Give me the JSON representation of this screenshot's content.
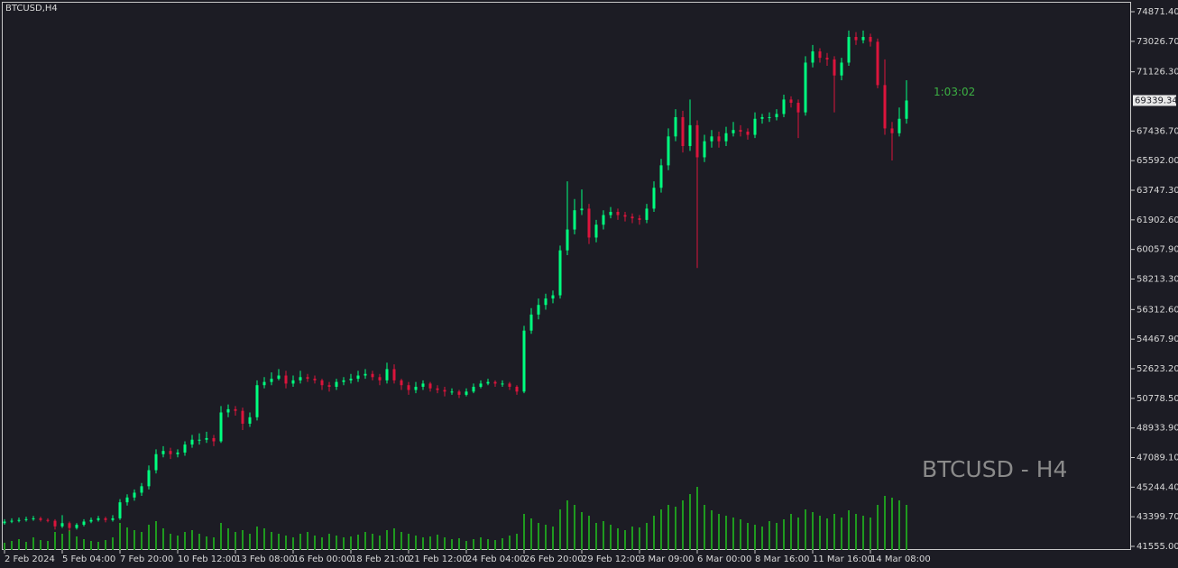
{
  "chart_data": {
    "type": "candlestick",
    "title": "BTCUSD,H4",
    "watermark": "BTCUSD - H4",
    "countdown": "1:03:02",
    "current_price": 69339.34,
    "up_color": "#00ff7f",
    "down_color": "#dc143c",
    "volume_color": "#1f9a1f",
    "ylim": [
      41330,
      75490
    ],
    "yticks": [
      {
        "value": 74871.4,
        "label": "74871.40"
      },
      {
        "value": 73026.7,
        "label": "73026.70"
      },
      {
        "value": 71126.3,
        "label": "71126.30"
      },
      {
        "value": 67436.7,
        "label": "67436.70"
      },
      {
        "value": 65592,
        "label": "65592.00"
      },
      {
        "value": 63747.3,
        "label": "63747.30"
      },
      {
        "value": 61902.6,
        "label": "61902.60"
      },
      {
        "value": 60057.9,
        "label": "60057.90"
      },
      {
        "value": 58213.3,
        "label": "58213.30"
      },
      {
        "value": 56312.6,
        "label": "56312.60"
      },
      {
        "value": 54467.9,
        "label": "54467.90"
      },
      {
        "value": 52623.2,
        "label": "52623.20"
      },
      {
        "value": 50778.5,
        "label": "50778.50"
      },
      {
        "value": 48933.9,
        "label": "48933.90"
      },
      {
        "value": 47089.1,
        "label": "47089.10"
      },
      {
        "value": 45244.4,
        "label": "45244.40"
      },
      {
        "value": 43399.7,
        "label": "43399.70"
      },
      {
        "value": 41555,
        "label": "41555.00"
      }
    ],
    "categories": [
      "2 Feb 2024",
      null,
      null,
      null,
      null,
      null,
      null,
      null,
      "5 Feb 04:00",
      null,
      null,
      null,
      null,
      null,
      null,
      null,
      "7 Feb 20:00",
      null,
      null,
      null,
      null,
      null,
      null,
      null,
      "10 Feb 12:00",
      null,
      null,
      null,
      null,
      null,
      null,
      null,
      "13 Feb 08:00",
      null,
      null,
      null,
      null,
      null,
      null,
      null,
      "16 Feb 00:00",
      null,
      null,
      null,
      null,
      null,
      null,
      null,
      "18 Feb 21:00",
      null,
      null,
      null,
      null,
      null,
      null,
      null,
      "21 Feb 12:00",
      null,
      null,
      null,
      null,
      null,
      null,
      null,
      "24 Feb 04:00",
      null,
      null,
      null,
      null,
      null,
      null,
      null,
      "26 Feb 20:00",
      null,
      null,
      null,
      null,
      null,
      null,
      null,
      "29 Feb 12:00",
      null,
      null,
      null,
      null,
      null,
      null,
      null,
      "3 Mar 09:00",
      null,
      null,
      null,
      null,
      null,
      null,
      null,
      "6 Mar 00:00",
      null,
      null,
      null,
      null,
      null,
      null,
      null,
      "8 Mar 16:00",
      null,
      null,
      null,
      null,
      null,
      null,
      null,
      "11 Mar 16:00",
      null,
      null,
      null,
      null,
      null,
      null,
      null,
      "14 Mar 08:00",
      null,
      null,
      null,
      null,
      null
    ],
    "ohlc": [
      [
        43000,
        43250,
        42900,
        43100
      ],
      [
        43100,
        43300,
        43000,
        43150
      ],
      [
        43150,
        43350,
        43050,
        43200
      ],
      [
        43200,
        43400,
        43100,
        43250
      ],
      [
        43250,
        43450,
        43150,
        43300
      ],
      [
        43300,
        43400,
        43100,
        43200
      ],
      [
        43200,
        43300,
        43050,
        43150
      ],
      [
        43150,
        43250,
        42600,
        42800
      ],
      [
        42800,
        43500,
        42700,
        43000
      ],
      [
        43000,
        43100,
        42500,
        42700
      ],
      [
        42700,
        43000,
        42600,
        42900
      ],
      [
        42900,
        43250,
        42800,
        43100
      ],
      [
        43100,
        43350,
        43000,
        43200
      ],
      [
        43200,
        43450,
        43100,
        43300
      ],
      [
        43300,
        43400,
        43050,
        43200
      ],
      [
        43200,
        43500,
        43100,
        43300
      ],
      [
        43300,
        44500,
        43200,
        44300
      ],
      [
        44300,
        44800,
        44100,
        44600
      ],
      [
        44600,
        45100,
        44400,
        44900
      ],
      [
        44900,
        45500,
        44700,
        45300
      ],
      [
        45300,
        46600,
        45100,
        46300
      ],
      [
        46300,
        47600,
        46100,
        47300
      ],
      [
        47300,
        47800,
        47100,
        47500
      ],
      [
        47500,
        47700,
        47000,
        47300
      ],
      [
        47300,
        47600,
        47100,
        47400
      ],
      [
        47400,
        48100,
        47200,
        47900
      ],
      [
        47900,
        48500,
        47700,
        48200
      ],
      [
        48200,
        48600,
        47900,
        48200
      ],
      [
        48200,
        48700,
        48000,
        48300
      ],
      [
        48300,
        48500,
        47800,
        48100
      ],
      [
        48100,
        50300,
        48000,
        49900
      ],
      [
        49900,
        50400,
        49600,
        50100
      ],
      [
        50100,
        50300,
        49700,
        50000
      ],
      [
        50000,
        50200,
        48800,
        49200
      ],
      [
        49200,
        49900,
        49000,
        49600
      ],
      [
        49600,
        51900,
        49400,
        51600
      ],
      [
        51600,
        52100,
        51400,
        51800
      ],
      [
        51800,
        52400,
        51600,
        52000
      ],
      [
        52000,
        52600,
        51900,
        52200
      ],
      [
        52200,
        52500,
        51400,
        51700
      ],
      [
        51700,
        52200,
        51500,
        51900
      ],
      [
        51900,
        52500,
        51700,
        52100
      ],
      [
        52100,
        52300,
        51800,
        52000
      ],
      [
        52000,
        52200,
        51700,
        51900
      ],
      [
        51900,
        52000,
        51300,
        51600
      ],
      [
        51600,
        51800,
        51200,
        51500
      ],
      [
        51500,
        52000,
        51300,
        51800
      ],
      [
        51800,
        52100,
        51600,
        51900
      ],
      [
        51900,
        52300,
        51700,
        52000
      ],
      [
        52000,
        52500,
        51800,
        52200
      ],
      [
        52200,
        52600,
        52000,
        52300
      ],
      [
        52300,
        52500,
        51900,
        52100
      ],
      [
        52100,
        52300,
        51600,
        51900
      ],
      [
        51900,
        53000,
        51700,
        52600
      ],
      [
        52600,
        52900,
        51700,
        51900
      ],
      [
        51900,
        52000,
        51300,
        51600
      ],
      [
        51600,
        51800,
        51000,
        51300
      ],
      [
        51300,
        51800,
        51100,
        51500
      ],
      [
        51500,
        51900,
        51300,
        51700
      ],
      [
        51700,
        51800,
        51200,
        51400
      ],
      [
        51400,
        51600,
        51100,
        51300
      ],
      [
        51300,
        51500,
        50900,
        51200
      ],
      [
        51200,
        51400,
        51000,
        51200
      ],
      [
        51200,
        51300,
        50800,
        51000
      ],
      [
        51000,
        51400,
        50900,
        51200
      ],
      [
        51200,
        51700,
        51100,
        51500
      ],
      [
        51500,
        51900,
        51400,
        51700
      ],
      [
        51700,
        52000,
        51600,
        51800
      ],
      [
        51800,
        51900,
        51500,
        51700
      ],
      [
        51700,
        51900,
        51500,
        51700
      ],
      [
        51700,
        51800,
        51300,
        51500
      ],
      [
        51500,
        51600,
        51000,
        51200
      ],
      [
        51200,
        55300,
        51100,
        55000
      ],
      [
        55000,
        56400,
        54800,
        56000
      ],
      [
        56000,
        57000,
        55700,
        56600
      ],
      [
        56600,
        57300,
        56300,
        57000
      ],
      [
        57000,
        57500,
        56700,
        57200
      ],
      [
        57200,
        60300,
        57000,
        60000
      ],
      [
        60000,
        64300,
        59700,
        61300
      ],
      [
        61300,
        63200,
        61000,
        62500
      ],
      [
        62500,
        63800,
        62200,
        62600
      ],
      [
        62600,
        62900,
        60400,
        60800
      ],
      [
        60800,
        61900,
        60500,
        61600
      ],
      [
        61600,
        62500,
        61300,
        62200
      ],
      [
        62200,
        62700,
        62000,
        62400
      ],
      [
        62400,
        62600,
        61900,
        62200
      ],
      [
        62200,
        62400,
        61800,
        62100
      ],
      [
        62100,
        62300,
        61700,
        62000
      ],
      [
        62000,
        62200,
        61600,
        61900
      ],
      [
        61900,
        62900,
        61700,
        62600
      ],
      [
        62600,
        64300,
        62400,
        63900
      ],
      [
        63900,
        65700,
        63600,
        65300
      ],
      [
        65300,
        67600,
        65000,
        67100
      ],
      [
        67100,
        68800,
        66800,
        68300
      ],
      [
        68300,
        68700,
        66100,
        66500
      ],
      [
        66500,
        69400,
        66200,
        67800
      ],
      [
        67800,
        68100,
        58900,
        65800
      ],
      [
        65800,
        67200,
        65500,
        66800
      ],
      [
        66800,
        67500,
        66400,
        67100
      ],
      [
        67100,
        67400,
        66400,
        66800
      ],
      [
        66800,
        67700,
        66500,
        67300
      ],
      [
        67300,
        68000,
        67100,
        67500
      ],
      [
        67500,
        67800,
        67100,
        67400
      ],
      [
        67400,
        67600,
        66900,
        67200
      ],
      [
        67200,
        68600,
        67000,
        68200
      ],
      [
        68200,
        68500,
        67900,
        68300
      ],
      [
        68300,
        68600,
        68000,
        68300
      ],
      [
        68300,
        68800,
        68100,
        68500
      ],
      [
        68500,
        69700,
        68300,
        69400
      ],
      [
        69400,
        69600,
        68900,
        69200
      ],
      [
        69200,
        69400,
        67000,
        68600
      ],
      [
        68600,
        72100,
        68400,
        71700
      ],
      [
        71700,
        72800,
        71400,
        72400
      ],
      [
        72400,
        72600,
        71700,
        72000
      ],
      [
        72000,
        72300,
        71500,
        71900
      ],
      [
        71900,
        72100,
        68600,
        70900
      ],
      [
        70900,
        72000,
        70600,
        71700
      ],
      [
        71700,
        73700,
        71500,
        73300
      ],
      [
        73300,
        73600,
        72800,
        73100
      ],
      [
        73100,
        73700,
        72900,
        73300
      ],
      [
        73300,
        73500,
        72700,
        73000
      ],
      [
        73000,
        73200,
        70100,
        70300
      ],
      [
        70300,
        71900,
        67200,
        67600
      ],
      [
        67600,
        68000,
        65600,
        67300
      ],
      [
        67300,
        68900,
        67100,
        68200
      ],
      [
        68200,
        70600,
        67900,
        69339.34
      ]
    ],
    "volume": [
      8,
      10,
      12,
      9,
      14,
      11,
      10,
      20,
      18,
      22,
      15,
      12,
      10,
      9,
      11,
      14,
      30,
      25,
      22,
      20,
      28,
      32,
      24,
      18,
      16,
      20,
      22,
      18,
      15,
      14,
      30,
      24,
      20,
      22,
      18,
      26,
      24,
      20,
      18,
      16,
      14,
      18,
      20,
      16,
      14,
      18,
      16,
      14,
      15,
      17,
      20,
      18,
      16,
      22,
      24,
      20,
      18,
      16,
      14,
      15,
      17,
      14,
      12,
      13,
      10,
      12,
      14,
      12,
      11,
      13,
      16,
      18,
      40,
      35,
      30,
      28,
      26,
      45,
      55,
      50,
      42,
      38,
      30,
      32,
      28,
      24,
      22,
      26,
      25,
      30,
      38,
      45,
      50,
      48,
      55,
      62,
      70,
      50,
      44,
      40,
      38,
      36,
      34,
      30,
      28,
      26,
      32,
      30,
      34,
      40,
      36,
      45,
      42,
      38,
      35,
      40,
      36,
      44,
      40,
      38,
      36,
      50,
      60,
      58,
      55,
      50
    ]
  }
}
